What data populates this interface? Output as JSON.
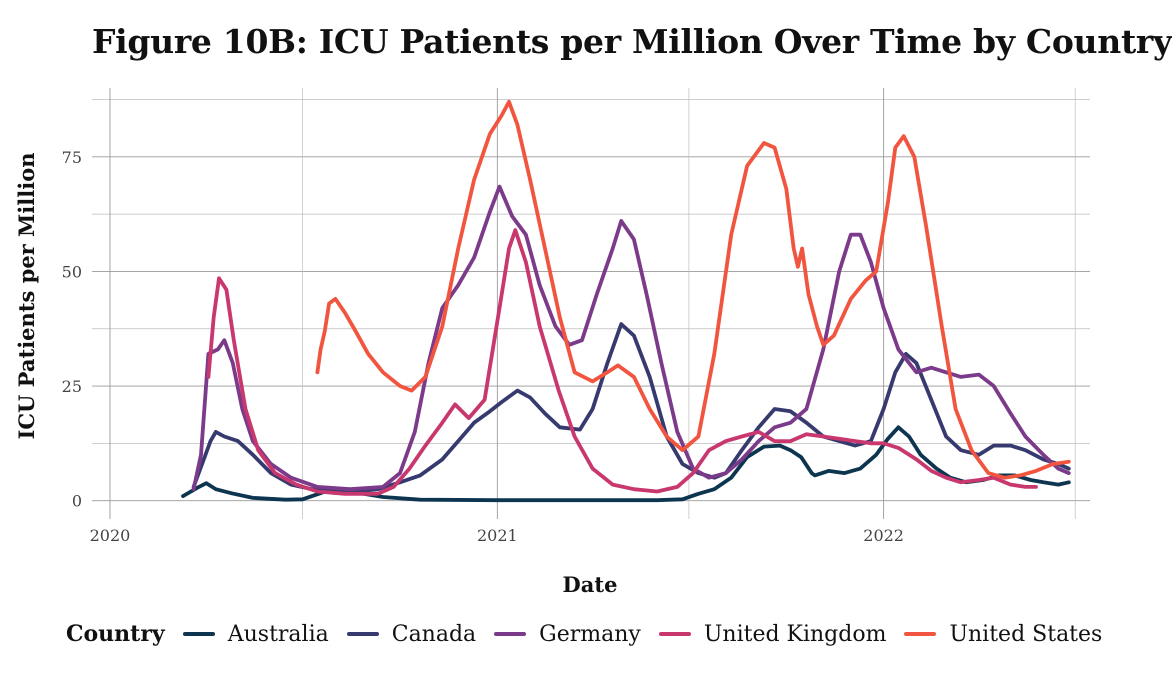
{
  "chart_data": {
    "type": "line",
    "title": "Figure 10B: ICU Patients per Million Over Time by Country",
    "xlabel": "Date",
    "ylabel": "ICU Patients per Million",
    "x_ticks": [
      "2020",
      "2021",
      "2022"
    ],
    "y_ticks": [
      "0",
      "25",
      "50",
      "75"
    ],
    "xlim": [
      "2019-12-15",
      "2022-07-15"
    ],
    "ylim": [
      -4,
      90
    ],
    "grid": true,
    "legend": {
      "title": "Country",
      "position": "bottom"
    },
    "series": [
      {
        "name": "Australia",
        "color": "#0d3550",
        "points": [
          [
            "2020-03-10",
            1
          ],
          [
            "2020-03-25",
            3
          ],
          [
            "2020-04-01",
            3.8
          ],
          [
            "2020-04-10",
            2.5
          ],
          [
            "2020-04-25",
            1.6
          ],
          [
            "2020-05-15",
            0.6
          ],
          [
            "2020-06-15",
            0.2
          ],
          [
            "2020-07-01",
            0.3
          ],
          [
            "2020-07-20",
            1.8
          ],
          [
            "2020-08-05",
            2.6
          ],
          [
            "2020-08-20",
            1.8
          ],
          [
            "2020-09-15",
            0.8
          ],
          [
            "2020-10-20",
            0.2
          ],
          [
            "2021-01-01",
            0.1
          ],
          [
            "2021-06-01",
            0.1
          ],
          [
            "2021-06-25",
            0.3
          ],
          [
            "2021-07-10",
            1.5
          ],
          [
            "2021-07-25",
            2.5
          ],
          [
            "2021-08-10",
            5
          ],
          [
            "2021-08-25",
            9.5
          ],
          [
            "2021-09-10",
            11.8
          ],
          [
            "2021-09-25",
            12
          ],
          [
            "2021-10-05",
            11
          ],
          [
            "2021-10-15",
            9.5
          ],
          [
            "2021-10-25",
            6
          ],
          [
            "2021-10-28",
            5.5
          ],
          [
            "2021-11-10",
            6.5
          ],
          [
            "2021-11-25",
            6
          ],
          [
            "2021-12-10",
            7
          ],
          [
            "2021-12-25",
            10
          ],
          [
            "2022-01-05",
            13.5
          ],
          [
            "2022-01-15",
            16
          ],
          [
            "2022-01-25",
            14
          ],
          [
            "2022-02-05",
            10
          ],
          [
            "2022-02-20",
            7
          ],
          [
            "2022-03-05",
            5
          ],
          [
            "2022-03-20",
            4
          ],
          [
            "2022-04-05",
            4.5
          ],
          [
            "2022-04-20",
            5.5
          ],
          [
            "2022-05-05",
            5.5
          ],
          [
            "2022-05-20",
            4.5
          ],
          [
            "2022-06-01",
            4
          ],
          [
            "2022-06-15",
            3.5
          ],
          [
            "2022-06-25",
            4
          ]
        ]
      },
      {
        "name": "Canada",
        "color": "#363a6e",
        "points": [
          [
            "2020-03-20",
            3
          ],
          [
            "2020-03-28",
            8
          ],
          [
            "2020-04-05",
            13
          ],
          [
            "2020-04-10",
            15
          ],
          [
            "2020-04-18",
            14
          ],
          [
            "2020-05-01",
            13
          ],
          [
            "2020-05-15",
            10
          ],
          [
            "2020-06-01",
            6
          ],
          [
            "2020-06-20",
            3.5
          ],
          [
            "2020-07-10",
            2.5
          ],
          [
            "2020-08-01",
            2
          ],
          [
            "2020-08-20",
            2
          ],
          [
            "2020-09-10",
            2.5
          ],
          [
            "2020-10-01",
            4
          ],
          [
            "2020-10-20",
            5.5
          ],
          [
            "2020-11-10",
            9
          ],
          [
            "2020-11-25",
            13
          ],
          [
            "2020-12-10",
            17
          ],
          [
            "2020-12-25",
            19.5
          ],
          [
            "2021-01-05",
            21.5
          ],
          [
            "2021-01-20",
            24
          ],
          [
            "2021-02-01",
            22.5
          ],
          [
            "2021-02-15",
            19
          ],
          [
            "2021-03-01",
            16
          ],
          [
            "2021-03-20",
            15.5
          ],
          [
            "2021-04-01",
            20
          ],
          [
            "2021-04-15",
            30
          ],
          [
            "2021-04-28",
            38.5
          ],
          [
            "2021-05-10",
            36
          ],
          [
            "2021-05-25",
            27
          ],
          [
            "2021-06-10",
            14
          ],
          [
            "2021-06-25",
            8
          ],
          [
            "2021-07-10",
            6
          ],
          [
            "2021-07-25",
            5
          ],
          [
            "2021-08-05",
            6
          ],
          [
            "2021-08-20",
            11
          ],
          [
            "2021-09-05",
            16
          ],
          [
            "2021-09-20",
            20
          ],
          [
            "2021-10-05",
            19.5
          ],
          [
            "2021-10-20",
            17
          ],
          [
            "2021-11-05",
            14
          ],
          [
            "2021-11-20",
            13
          ],
          [
            "2021-12-05",
            12
          ],
          [
            "2021-12-20",
            13
          ],
          [
            "2022-01-01",
            20
          ],
          [
            "2022-01-12",
            28
          ],
          [
            "2022-01-22",
            32
          ],
          [
            "2022-02-01",
            30
          ],
          [
            "2022-02-15",
            22
          ],
          [
            "2022-03-01",
            14
          ],
          [
            "2022-03-15",
            11
          ],
          [
            "2022-04-01",
            10
          ],
          [
            "2022-04-15",
            12
          ],
          [
            "2022-05-01",
            12
          ],
          [
            "2022-05-15",
            11
          ],
          [
            "2022-06-01",
            9
          ],
          [
            "2022-06-15",
            8
          ],
          [
            "2022-06-25",
            7
          ]
        ]
      },
      {
        "name": "Germany",
        "color": "#7b3a8a",
        "points": [
          [
            "2020-03-20",
            2.5
          ],
          [
            "2020-03-27",
            10
          ],
          [
            "2020-04-03",
            32
          ],
          [
            "2020-04-12",
            33
          ],
          [
            "2020-04-18",
            35
          ],
          [
            "2020-04-26",
            30
          ],
          [
            "2020-05-05",
            20
          ],
          [
            "2020-05-15",
            13
          ],
          [
            "2020-06-01",
            8
          ],
          [
            "2020-06-20",
            5
          ],
          [
            "2020-07-15",
            3
          ],
          [
            "2020-08-15",
            2.5
          ],
          [
            "2020-09-15",
            3
          ],
          [
            "2020-10-01",
            6
          ],
          [
            "2020-10-15",
            15
          ],
          [
            "2020-10-28",
            30
          ],
          [
            "2020-11-10",
            42
          ],
          [
            "2020-11-25",
            47
          ],
          [
            "2020-12-10",
            53
          ],
          [
            "2020-12-25",
            63
          ],
          [
            "2021-01-03",
            68.5
          ],
          [
            "2021-01-15",
            62
          ],
          [
            "2021-01-28",
            58
          ],
          [
            "2021-02-10",
            47
          ],
          [
            "2021-02-25",
            38
          ],
          [
            "2021-03-10",
            34
          ],
          [
            "2021-03-22",
            35
          ],
          [
            "2021-04-05",
            45
          ],
          [
            "2021-04-20",
            55
          ],
          [
            "2021-04-28",
            61
          ],
          [
            "2021-05-10",
            57
          ],
          [
            "2021-05-22",
            45
          ],
          [
            "2021-06-05",
            30
          ],
          [
            "2021-06-20",
            15
          ],
          [
            "2021-07-05",
            7
          ],
          [
            "2021-07-20",
            5
          ],
          [
            "2021-08-05",
            6
          ],
          [
            "2021-08-20",
            9
          ],
          [
            "2021-09-05",
            13
          ],
          [
            "2021-09-20",
            16
          ],
          [
            "2021-10-05",
            17
          ],
          [
            "2021-10-20",
            20
          ],
          [
            "2021-11-05",
            33
          ],
          [
            "2021-11-20",
            50
          ],
          [
            "2021-12-01",
            58
          ],
          [
            "2021-12-10",
            58
          ],
          [
            "2021-12-20",
            52
          ],
          [
            "2022-01-01",
            42
          ],
          [
            "2022-01-15",
            33
          ],
          [
            "2022-02-01",
            28
          ],
          [
            "2022-02-15",
            29
          ],
          [
            "2022-03-01",
            28
          ],
          [
            "2022-03-15",
            27
          ],
          [
            "2022-04-01",
            27.5
          ],
          [
            "2022-04-15",
            25
          ],
          [
            "2022-05-01",
            19
          ],
          [
            "2022-05-15",
            14
          ],
          [
            "2022-06-01",
            10
          ],
          [
            "2022-06-15",
            7
          ],
          [
            "2022-06-25",
            6
          ]
        ]
      },
      {
        "name": "United Kingdom",
        "color": "#c8386e",
        "points": [
          [
            "2020-04-03",
            27
          ],
          [
            "2020-04-08",
            40
          ],
          [
            "2020-04-13",
            48.5
          ],
          [
            "2020-04-20",
            46
          ],
          [
            "2020-04-27",
            35
          ],
          [
            "2020-05-08",
            20
          ],
          [
            "2020-05-20",
            11
          ],
          [
            "2020-06-05",
            6
          ],
          [
            "2020-06-25",
            3.5
          ],
          [
            "2020-07-15",
            2
          ],
          [
            "2020-08-10",
            1.5
          ],
          [
            "2020-09-10",
            1.5
          ],
          [
            "2020-09-25",
            3
          ],
          [
            "2020-10-10",
            7
          ],
          [
            "2020-10-25",
            12
          ],
          [
            "2020-11-10",
            17
          ],
          [
            "2020-11-22",
            21
          ],
          [
            "2020-12-05",
            18
          ],
          [
            "2020-12-20",
            22
          ],
          [
            "2021-01-03",
            42
          ],
          [
            "2021-01-12",
            55
          ],
          [
            "2021-01-18",
            59
          ],
          [
            "2021-01-28",
            52
          ],
          [
            "2021-02-10",
            38
          ],
          [
            "2021-02-28",
            24
          ],
          [
            "2021-03-15",
            14
          ],
          [
            "2021-04-01",
            7
          ],
          [
            "2021-04-20",
            3.5
          ],
          [
            "2021-05-10",
            2.5
          ],
          [
            "2021-06-01",
            2
          ],
          [
            "2021-06-20",
            3
          ],
          [
            "2021-07-05",
            6
          ],
          [
            "2021-07-20",
            11
          ],
          [
            "2021-08-05",
            13
          ],
          [
            "2021-08-20",
            14
          ],
          [
            "2021-09-05",
            15
          ],
          [
            "2021-09-20",
            13
          ],
          [
            "2021-10-05",
            13
          ],
          [
            "2021-10-20",
            14.5
          ],
          [
            "2021-11-05",
            14
          ],
          [
            "2021-11-20",
            13.5
          ],
          [
            "2021-12-05",
            13
          ],
          [
            "2021-12-20",
            12.5
          ],
          [
            "2022-01-01",
            12.5
          ],
          [
            "2022-01-15",
            11.5
          ],
          [
            "2022-02-01",
            9
          ],
          [
            "2022-02-15",
            6.5
          ],
          [
            "2022-03-01",
            5
          ],
          [
            "2022-03-15",
            4
          ],
          [
            "2022-04-01",
            4.5
          ],
          [
            "2022-04-15",
            5
          ],
          [
            "2022-05-01",
            3.5
          ],
          [
            "2022-05-15",
            3
          ],
          [
            "2022-05-25",
            3
          ]
        ]
      },
      {
        "name": "United States",
        "color": "#f2553f",
        "points": [
          [
            "2020-07-15",
            28
          ],
          [
            "2020-07-18",
            33
          ],
          [
            "2020-07-22",
            37
          ],
          [
            "2020-07-26",
            43
          ],
          [
            "2020-08-01",
            44
          ],
          [
            "2020-08-10",
            41
          ],
          [
            "2020-08-20",
            37
          ],
          [
            "2020-09-01",
            32
          ],
          [
            "2020-09-15",
            28
          ],
          [
            "2020-10-01",
            25
          ],
          [
            "2020-10-12",
            24
          ],
          [
            "2020-10-25",
            27
          ],
          [
            "2020-11-10",
            38
          ],
          [
            "2020-11-25",
            55
          ],
          [
            "2020-12-10",
            70
          ],
          [
            "2020-12-25",
            80
          ],
          [
            "2021-01-05",
            84
          ],
          [
            "2021-01-12",
            87
          ],
          [
            "2021-01-20",
            82
          ],
          [
            "2021-02-01",
            70
          ],
          [
            "2021-02-15",
            55
          ],
          [
            "2021-03-01",
            40
          ],
          [
            "2021-03-15",
            28
          ],
          [
            "2021-04-01",
            26
          ],
          [
            "2021-04-15",
            28
          ],
          [
            "2021-04-25",
            29.5
          ],
          [
            "2021-05-10",
            27
          ],
          [
            "2021-05-25",
            20
          ],
          [
            "2021-06-10",
            14
          ],
          [
            "2021-06-25",
            11
          ],
          [
            "2021-07-10",
            14
          ],
          [
            "2021-07-25",
            32
          ],
          [
            "2021-08-10",
            58
          ],
          [
            "2021-08-25",
            73
          ],
          [
            "2021-09-10",
            78
          ],
          [
            "2021-09-20",
            77
          ],
          [
            "2021-10-01",
            68
          ],
          [
            "2021-10-08",
            55
          ],
          [
            "2021-10-12",
            51
          ],
          [
            "2021-10-16",
            55
          ],
          [
            "2021-10-22",
            45
          ],
          [
            "2021-10-30",
            38
          ],
          [
            "2021-11-05",
            34
          ],
          [
            "2021-11-15",
            36
          ],
          [
            "2021-12-01",
            44
          ],
          [
            "2021-12-15",
            48
          ],
          [
            "2021-12-25",
            50
          ],
          [
            "2022-01-05",
            65
          ],
          [
            "2022-01-12",
            77
          ],
          [
            "2022-01-20",
            79.5
          ],
          [
            "2022-01-30",
            75
          ],
          [
            "2022-02-10",
            60
          ],
          [
            "2022-02-25",
            38
          ],
          [
            "2022-03-10",
            20
          ],
          [
            "2022-03-25",
            11
          ],
          [
            "2022-04-10",
            6
          ],
          [
            "2022-04-25",
            5
          ],
          [
            "2022-05-10",
            5.5
          ],
          [
            "2022-05-25",
            6.5
          ],
          [
            "2022-06-10",
            8
          ],
          [
            "2022-06-25",
            8.5
          ]
        ]
      }
    ]
  }
}
